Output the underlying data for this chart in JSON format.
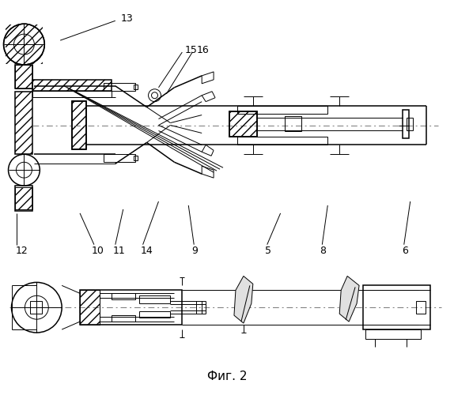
{
  "bg_color": "#ffffff",
  "line_color": "#000000",
  "fig_label": "Фиг. 2"
}
